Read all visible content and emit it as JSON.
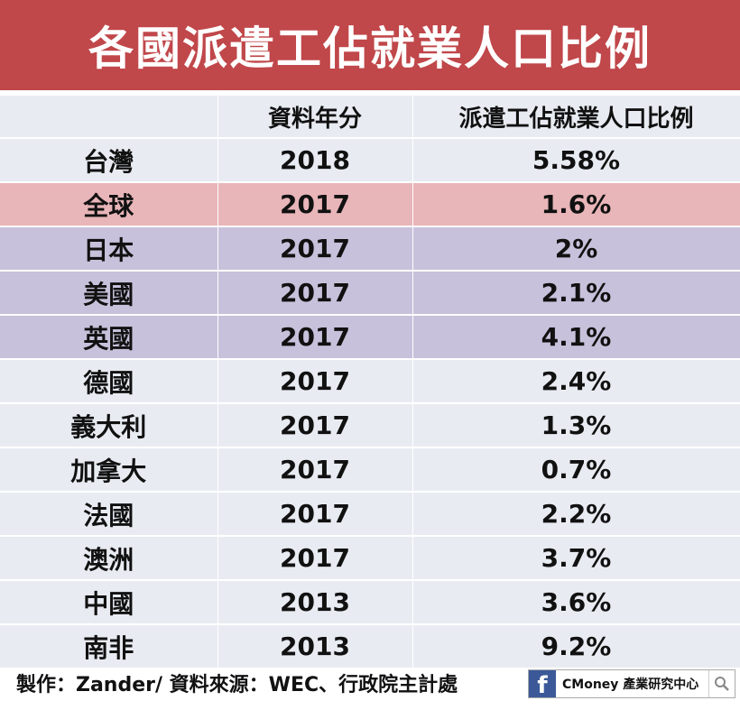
{
  "title": "各國派遣工佔就業人口比例",
  "table": {
    "headers": [
      "",
      "資料年分",
      "派遣工佔就業人口比例"
    ],
    "rows": [
      {
        "country": "台灣",
        "year": "2018",
        "ratio": "5.58%",
        "style": "row-default"
      },
      {
        "country": "全球",
        "year": "2017",
        "ratio": "1.6%",
        "style": "row-global"
      },
      {
        "country": "日本",
        "year": "2017",
        "ratio": "2%",
        "style": "row-group"
      },
      {
        "country": "美國",
        "year": "2017",
        "ratio": "2.1%",
        "style": "row-group"
      },
      {
        "country": "英國",
        "year": "2017",
        "ratio": "4.1%",
        "style": "row-group"
      },
      {
        "country": "德國",
        "year": "2017",
        "ratio": "2.4%",
        "style": "row-default"
      },
      {
        "country": "義大利",
        "year": "2017",
        "ratio": "1.3%",
        "style": "row-default"
      },
      {
        "country": "加拿大",
        "year": "2017",
        "ratio": "0.7%",
        "style": "row-default"
      },
      {
        "country": "法國",
        "year": "2017",
        "ratio": "2.2%",
        "style": "row-default"
      },
      {
        "country": "澳洲",
        "year": "2017",
        "ratio": "3.7%",
        "style": "row-default"
      },
      {
        "country": "中國",
        "year": "2013",
        "ratio": "3.6%",
        "style": "row-default"
      },
      {
        "country": "南非",
        "year": "2013",
        "ratio": "9.2%",
        "style": "row-default"
      }
    ]
  },
  "chart_data": {
    "type": "table",
    "title": "各國派遣工佔就業人口比例",
    "columns": [
      "",
      "資料年分",
      "派遣工佔就業人口比例"
    ],
    "categories": [
      "台灣",
      "全球",
      "日本",
      "美國",
      "英國",
      "德國",
      "義大利",
      "加拿大",
      "法國",
      "澳洲",
      "中國",
      "南非"
    ],
    "years": [
      2018,
      2017,
      2017,
      2017,
      2017,
      2017,
      2017,
      2017,
      2017,
      2017,
      2013,
      2013
    ],
    "values": [
      5.58,
      1.6,
      2,
      2.1,
      4.1,
      2.4,
      1.3,
      0.7,
      2.2,
      3.7,
      3.6,
      9.2
    ]
  },
  "footer": {
    "credit": "製作：Zander/ 資料來源：WEC、行政院主計處",
    "brand_icon": "f",
    "brand_label": "CMoney 產業研究中心"
  },
  "colors": {
    "banner": "#c0474a",
    "row_default": "#e8ecf2",
    "row_global": "#e8b5b8",
    "row_group": "#c7c1db"
  }
}
